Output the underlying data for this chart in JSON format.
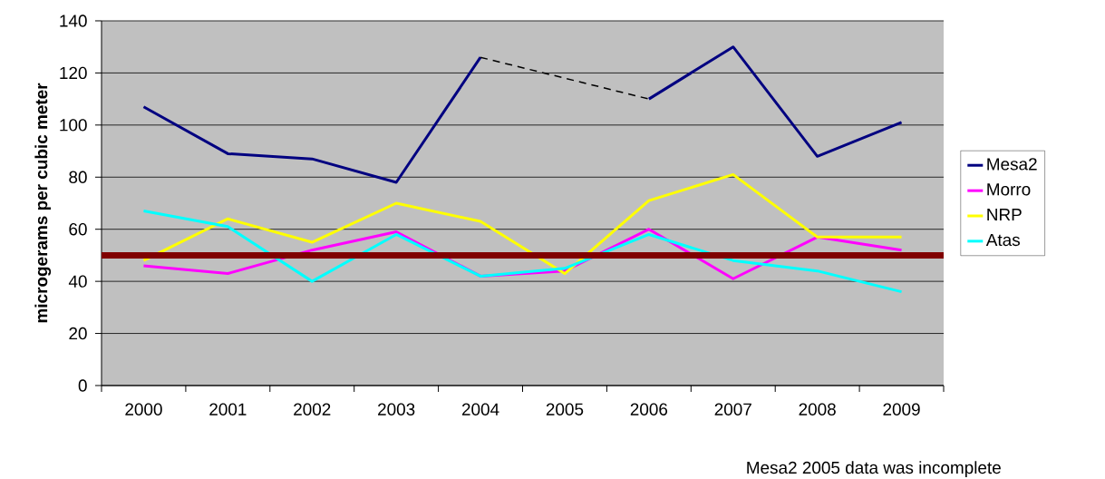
{
  "chart_data": {
    "type": "line",
    "ylabel": "microgerams per cubic meter",
    "categories": [
      "2000",
      "2001",
      "2002",
      "2003",
      "2004",
      "2005",
      "2006",
      "2007",
      "2008",
      "2009"
    ],
    "series": [
      {
        "name": "Mesa2",
        "color": "#000080",
        "values": [
          107,
          89,
          87,
          78,
          126,
          null,
          110,
          130,
          88,
          101
        ]
      },
      {
        "name": "Morro",
        "color": "#ff00ff",
        "values": [
          46,
          43,
          52,
          59,
          42,
          44,
          60,
          41,
          57,
          52
        ]
      },
      {
        "name": "NRP",
        "color": "#ffff00",
        "values": [
          48,
          64,
          55,
          70,
          63,
          43,
          71,
          81,
          57,
          57
        ]
      },
      {
        "name": "Atas",
        "color": "#00ffff",
        "values": [
          67,
          61,
          40,
          58,
          42,
          45,
          58,
          48,
          44,
          36
        ]
      },
      {
        "color": "#000000",
        "line_style": "dashed",
        "values": [
          null,
          null,
          null,
          null,
          126,
          null,
          110,
          null,
          null,
          null
        ]
      }
    ],
    "ylim": [
      0,
      140
    ],
    "yticks": [
      0,
      20,
      40,
      60,
      80,
      100,
      120,
      140
    ],
    "ref_lines": [
      {
        "axis": "y",
        "value": 50,
        "color": "#800000"
      }
    ],
    "grid": "y",
    "legend": "right",
    "marker": "none",
    "annotations": [
      "Mesa2 2005 data was incomplete"
    ]
  }
}
